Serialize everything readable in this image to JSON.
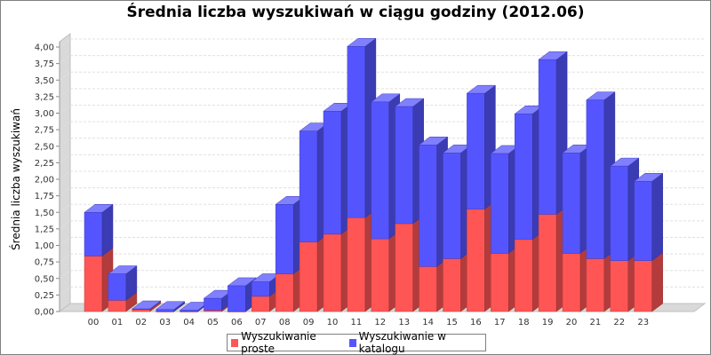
{
  "chart_data": {
    "type": "bar",
    "stacked": true,
    "title": "Średnia liczba wyszukiwań w ciągu godziny (2012.06)",
    "xlabel": "",
    "ylabel": "Średnia liczba wyszukiwań",
    "ylim": [
      0,
      4.0
    ],
    "yticks": [
      "0,00",
      "0,25",
      "0,50",
      "0,75",
      "1,00",
      "1,25",
      "1,50",
      "1,75",
      "2,00",
      "2,25",
      "2,50",
      "2,75",
      "3,00",
      "3,25",
      "3,50",
      "3,75",
      "4,00"
    ],
    "categories": [
      "00",
      "01",
      "02",
      "03",
      "04",
      "05",
      "06",
      "07",
      "08",
      "09",
      "10",
      "11",
      "12",
      "13",
      "14",
      "15",
      "16",
      "17",
      "18",
      "19",
      "20",
      "21",
      "22",
      "23"
    ],
    "series": [
      {
        "name": "Wyszukiwanie proste",
        "color": "#ff5555",
        "values": [
          0.84,
          0.17,
          0.03,
          0.0,
          0.0,
          0.02,
          0.0,
          0.23,
          0.57,
          1.05,
          1.17,
          1.42,
          1.1,
          1.33,
          0.68,
          0.8,
          1.55,
          0.88,
          1.09,
          1.47,
          0.88,
          0.8,
          0.77,
          0.77
        ]
      },
      {
        "name": "Wyszukiwanie w katalogu",
        "color": "#5555ff",
        "values": [
          0.66,
          0.4,
          0.01,
          0.03,
          0.02,
          0.18,
          0.39,
          0.22,
          1.05,
          1.68,
          1.86,
          2.59,
          2.07,
          1.77,
          1.84,
          1.6,
          1.75,
          1.51,
          1.9,
          2.34,
          1.52,
          2.4,
          1.43,
          1.2
        ]
      }
    ],
    "grid": true,
    "legend_position": "bottom"
  }
}
